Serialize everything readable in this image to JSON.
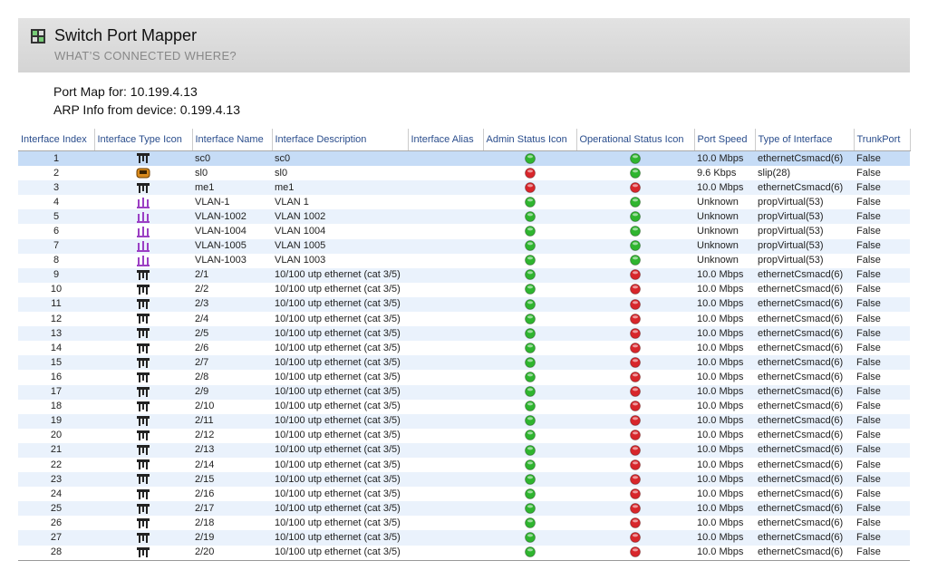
{
  "header": {
    "title": "Switch Port Mapper",
    "subtitle": "WHAT’S CONNECTED WHERE?"
  },
  "info": {
    "port_map": "Port Map for: 10.199.4.13",
    "arp": "ARP Info  from device: 0.199.4.13"
  },
  "table": {
    "columns": [
      "Interface Index",
      "Interface Type Icon",
      "Interface Name",
      "Interface Description",
      "Interface Alias",
      "Admin Status Icon",
      "Operational Status Icon",
      "Port Speed",
      "Type of Interface",
      "TrunkPort"
    ],
    "selected_row": 0,
    "rows": [
      {
        "index": 1,
        "icon": "ethernet",
        "name": "sc0",
        "desc": "sc0",
        "admin": "#2fb52f",
        "oper": "#2fb52f",
        "speed": "10.0 Mbps",
        "type": "ethernetCsmacd(6)",
        "trunk": "False"
      },
      {
        "index": 2,
        "icon": "slip",
        "name": "sl0",
        "desc": "sl0",
        "admin": "#d8262b",
        "oper": "#2fb52f",
        "speed": "9.6 Kbps",
        "type": "slip(28)",
        "trunk": "False"
      },
      {
        "index": 3,
        "icon": "ethernet",
        "name": "me1",
        "desc": "me1",
        "admin": "#d8262b",
        "oper": "#d8262b",
        "speed": "10.0 Mbps",
        "type": "ethernetCsmacd(6)",
        "trunk": "False"
      },
      {
        "index": 4,
        "icon": "vlan",
        "name": "VLAN-1",
        "desc": "VLAN 1",
        "admin": "#2fb52f",
        "oper": "#2fb52f",
        "speed": "Unknown",
        "type": "propVirtual(53)",
        "trunk": "False"
      },
      {
        "index": 5,
        "icon": "vlan",
        "name": "VLAN-1002",
        "desc": "VLAN 1002",
        "admin": "#2fb52f",
        "oper": "#2fb52f",
        "speed": "Unknown",
        "type": "propVirtual(53)",
        "trunk": "False"
      },
      {
        "index": 6,
        "icon": "vlan",
        "name": "VLAN-1004",
        "desc": "VLAN 1004",
        "admin": "#2fb52f",
        "oper": "#2fb52f",
        "speed": "Unknown",
        "type": "propVirtual(53)",
        "trunk": "False"
      },
      {
        "index": 7,
        "icon": "vlan",
        "name": "VLAN-1005",
        "desc": "VLAN 1005",
        "admin": "#2fb52f",
        "oper": "#2fb52f",
        "speed": "Unknown",
        "type": "propVirtual(53)",
        "trunk": "False"
      },
      {
        "index": 8,
        "icon": "vlan",
        "name": "VLAN-1003",
        "desc": "VLAN 1003",
        "admin": "#2fb52f",
        "oper": "#2fb52f",
        "speed": "Unknown",
        "type": "propVirtual(53)",
        "trunk": "False"
      },
      {
        "index": 9,
        "icon": "ethernet",
        "name": "2/1",
        "desc": "10/100 utp ethernet (cat 3/5)",
        "admin": "#2fb52f",
        "oper": "#d8262b",
        "speed": "10.0 Mbps",
        "type": "ethernetCsmacd(6)",
        "trunk": "False"
      },
      {
        "index": 10,
        "icon": "ethernet",
        "name": "2/2",
        "desc": "10/100 utp ethernet (cat 3/5)",
        "admin": "#2fb52f",
        "oper": "#d8262b",
        "speed": "10.0 Mbps",
        "type": "ethernetCsmacd(6)",
        "trunk": "False"
      },
      {
        "index": 11,
        "icon": "ethernet",
        "name": "2/3",
        "desc": "10/100 utp ethernet (cat 3/5)",
        "admin": "#2fb52f",
        "oper": "#d8262b",
        "speed": "10.0 Mbps",
        "type": "ethernetCsmacd(6)",
        "trunk": "False"
      },
      {
        "index": 12,
        "icon": "ethernet",
        "name": "2/4",
        "desc": "10/100 utp ethernet (cat 3/5)",
        "admin": "#2fb52f",
        "oper": "#d8262b",
        "speed": "10.0 Mbps",
        "type": "ethernetCsmacd(6)",
        "trunk": "False"
      },
      {
        "index": 13,
        "icon": "ethernet",
        "name": "2/5",
        "desc": "10/100 utp ethernet (cat 3/5)",
        "admin": "#2fb52f",
        "oper": "#d8262b",
        "speed": "10.0 Mbps",
        "type": "ethernetCsmacd(6)",
        "trunk": "False"
      },
      {
        "index": 14,
        "icon": "ethernet",
        "name": "2/6",
        "desc": "10/100 utp ethernet (cat 3/5)",
        "admin": "#2fb52f",
        "oper": "#d8262b",
        "speed": "10.0 Mbps",
        "type": "ethernetCsmacd(6)",
        "trunk": "False"
      },
      {
        "index": 15,
        "icon": "ethernet",
        "name": "2/7",
        "desc": "10/100 utp ethernet (cat 3/5)",
        "admin": "#2fb52f",
        "oper": "#d8262b",
        "speed": "10.0 Mbps",
        "type": "ethernetCsmacd(6)",
        "trunk": "False"
      },
      {
        "index": 16,
        "icon": "ethernet",
        "name": "2/8",
        "desc": "10/100 utp ethernet (cat 3/5)",
        "admin": "#2fb52f",
        "oper": "#d8262b",
        "speed": "10.0 Mbps",
        "type": "ethernetCsmacd(6)",
        "trunk": "False"
      },
      {
        "index": 17,
        "icon": "ethernet",
        "name": "2/9",
        "desc": "10/100 utp ethernet (cat 3/5)",
        "admin": "#2fb52f",
        "oper": "#d8262b",
        "speed": "10.0 Mbps",
        "type": "ethernetCsmacd(6)",
        "trunk": "False"
      },
      {
        "index": 18,
        "icon": "ethernet",
        "name": "2/10",
        "desc": "10/100 utp ethernet (cat 3/5)",
        "admin": "#2fb52f",
        "oper": "#d8262b",
        "speed": "10.0 Mbps",
        "type": "ethernetCsmacd(6)",
        "trunk": "False"
      },
      {
        "index": 19,
        "icon": "ethernet",
        "name": "2/11",
        "desc": "10/100 utp ethernet (cat 3/5)",
        "admin": "#2fb52f",
        "oper": "#d8262b",
        "speed": "10.0 Mbps",
        "type": "ethernetCsmacd(6)",
        "trunk": "False"
      },
      {
        "index": 20,
        "icon": "ethernet",
        "name": "2/12",
        "desc": "10/100 utp ethernet (cat 3/5)",
        "admin": "#2fb52f",
        "oper": "#d8262b",
        "speed": "10.0 Mbps",
        "type": "ethernetCsmacd(6)",
        "trunk": "False"
      },
      {
        "index": 21,
        "icon": "ethernet",
        "name": "2/13",
        "desc": "10/100 utp ethernet (cat 3/5)",
        "admin": "#2fb52f",
        "oper": "#d8262b",
        "speed": "10.0 Mbps",
        "type": "ethernetCsmacd(6)",
        "trunk": "False"
      },
      {
        "index": 22,
        "icon": "ethernet",
        "name": "2/14",
        "desc": "10/100 utp ethernet (cat 3/5)",
        "admin": "#2fb52f",
        "oper": "#d8262b",
        "speed": "10.0 Mbps",
        "type": "ethernetCsmacd(6)",
        "trunk": "False"
      },
      {
        "index": 23,
        "icon": "ethernet",
        "name": "2/15",
        "desc": "10/100 utp ethernet (cat 3/5)",
        "admin": "#2fb52f",
        "oper": "#d8262b",
        "speed": "10.0 Mbps",
        "type": "ethernetCsmacd(6)",
        "trunk": "False"
      },
      {
        "index": 24,
        "icon": "ethernet",
        "name": "2/16",
        "desc": "10/100 utp ethernet (cat 3/5)",
        "admin": "#2fb52f",
        "oper": "#d8262b",
        "speed": "10.0 Mbps",
        "type": "ethernetCsmacd(6)",
        "trunk": "False"
      },
      {
        "index": 25,
        "icon": "ethernet",
        "name": "2/17",
        "desc": "10/100 utp ethernet (cat 3/5)",
        "admin": "#2fb52f",
        "oper": "#d8262b",
        "speed": "10.0 Mbps",
        "type": "ethernetCsmacd(6)",
        "trunk": "False"
      },
      {
        "index": 26,
        "icon": "ethernet",
        "name": "2/18",
        "desc": "10/100 utp ethernet (cat 3/5)",
        "admin": "#2fb52f",
        "oper": "#d8262b",
        "speed": "10.0 Mbps",
        "type": "ethernetCsmacd(6)",
        "trunk": "False"
      },
      {
        "index": 27,
        "icon": "ethernet",
        "name": "2/19",
        "desc": "10/100 utp ethernet (cat 3/5)",
        "admin": "#2fb52f",
        "oper": "#d8262b",
        "speed": "10.0 Mbps",
        "type": "ethernetCsmacd(6)",
        "trunk": "False"
      },
      {
        "index": 28,
        "icon": "ethernet",
        "name": "2/20",
        "desc": "10/100 utp ethernet (cat 3/5)",
        "admin": "#2fb52f",
        "oper": "#d8262b",
        "speed": "10.0 Mbps",
        "type": "ethernetCsmacd(6)",
        "trunk": "False"
      }
    ]
  }
}
